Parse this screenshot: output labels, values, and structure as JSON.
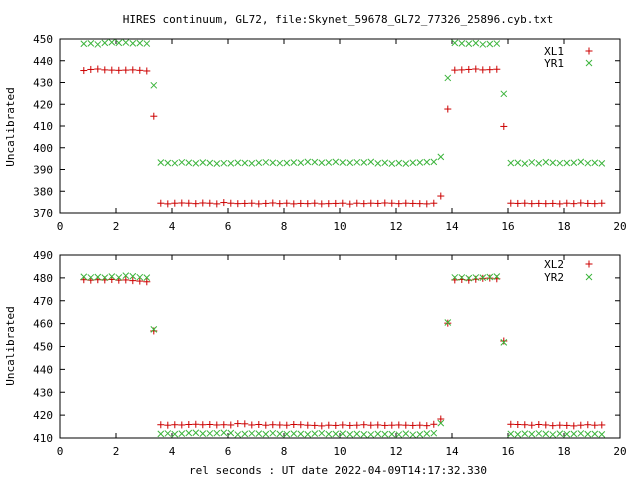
{
  "title": "HIRES continuum, GL72, file:Skynet_59678_GL72_77326_25896.cyb.txt",
  "xlabel": "rel seconds : UT date 2022-04-09T14:17:32.330",
  "colors": {
    "xl": "#cc0000",
    "yr": "#3cb43c",
    "axis": "#000000",
    "background": "#ffffff"
  },
  "chart_data": [
    {
      "type": "scatter",
      "ylabel": "Uncalibrated",
      "xlim": [
        0,
        20
      ],
      "ylim": [
        370,
        450
      ],
      "xticks": [
        "0",
        "2",
        "4",
        "6",
        "8",
        "10",
        "12",
        "14",
        "16",
        "18",
        "20"
      ],
      "yticks": [
        "370",
        "380",
        "390",
        "400",
        "410",
        "420",
        "430",
        "440",
        "450"
      ],
      "legend_position": "top-right",
      "grid": false,
      "x": [
        0.85,
        1.1,
        1.35,
        1.6,
        1.85,
        2.1,
        2.35,
        2.6,
        2.85,
        3.1,
        3.35,
        3.6,
        3.85,
        4.1,
        4.35,
        4.6,
        4.85,
        5.1,
        5.35,
        5.6,
        5.85,
        6.1,
        6.35,
        6.6,
        6.85,
        7.1,
        7.35,
        7.6,
        7.85,
        8.1,
        8.35,
        8.6,
        8.85,
        9.1,
        9.35,
        9.6,
        9.85,
        10.1,
        10.35,
        10.6,
        10.85,
        11.1,
        11.35,
        11.6,
        11.85,
        12.1,
        12.35,
        12.6,
        12.85,
        13.1,
        13.35,
        13.6,
        13.85,
        14.1,
        14.35,
        14.6,
        14.85,
        15.1,
        15.35,
        15.6,
        15.85,
        16.1,
        16.35,
        16.6,
        16.85,
        17.1,
        17.35,
        17.6,
        17.85,
        18.1,
        18.35,
        18.6,
        18.85,
        19.1,
        19.35
      ],
      "series": [
        {
          "name": "XL1",
          "marker": "plus",
          "values": [
            435.5,
            436,
            436.2,
            435.8,
            435.7,
            435.6,
            435.7,
            435.8,
            435.6,
            435.3,
            414.5,
            374.5,
            374.2,
            374.5,
            374.6,
            374.5,
            374.3,
            374.6,
            374.5,
            374.2,
            374.8,
            374.5,
            374.3,
            374.4,
            374.5,
            374.2,
            374.4,
            374.6,
            374.3,
            374.5,
            374.2,
            374.4,
            374.3,
            374.5,
            374.2,
            374.3,
            374.4,
            374.5,
            374.1,
            374.5,
            374.3,
            374.5,
            374.4,
            374.6,
            374.5,
            374.3,
            374.5,
            374.4,
            374.3,
            374.2,
            374.5,
            377.8,
            417.8,
            435.7,
            435.8,
            436,
            436.2,
            435.8,
            435.9,
            436.1,
            409.8,
            374.5,
            374.4,
            374.5,
            374.3,
            374.4,
            374.3,
            374.4,
            374.2,
            374.5,
            374.3,
            374.6,
            374.4,
            374.3,
            374.5
          ]
        },
        {
          "name": "YR1",
          "marker": "cross",
          "values": [
            447.8,
            448,
            447.5,
            448.2,
            448.5,
            448.2,
            448.4,
            448,
            448.1,
            447.9,
            428.7,
            393.2,
            393,
            392.9,
            393.3,
            393.1,
            392.8,
            393.2,
            393,
            392.7,
            392.9,
            392.8,
            393.1,
            393,
            392.8,
            393.1,
            393.3,
            393.1,
            392.9,
            393,
            393.2,
            393.1,
            393.5,
            393.4,
            393.1,
            393.2,
            393.5,
            393.2,
            393.1,
            393.3,
            393.2,
            393.5,
            392.8,
            393.1,
            392.7,
            393,
            392.7,
            393.1,
            393.2,
            393.4,
            393.5,
            395.8,
            432.1,
            448.2,
            448,
            447.8,
            448.1,
            447.5,
            447.7,
            447.9,
            424.8,
            393,
            393.1,
            392.7,
            393.3,
            392.8,
            393.4,
            393.1,
            392.9,
            393,
            393.1,
            393.5,
            392.9,
            393.1,
            392.8
          ]
        }
      ]
    },
    {
      "type": "scatter",
      "ylabel": "Uncalibrated",
      "xlim": [
        0,
        20
      ],
      "ylim": [
        410,
        490
      ],
      "xticks": [
        "0",
        "2",
        "4",
        "6",
        "8",
        "10",
        "12",
        "14",
        "16",
        "18",
        "20"
      ],
      "yticks": [
        "410",
        "420",
        "430",
        "440",
        "450",
        "460",
        "470",
        "480",
        "490"
      ],
      "legend_position": "top-right",
      "grid": false,
      "x": [
        0.85,
        1.1,
        1.35,
        1.6,
        1.85,
        2.1,
        2.35,
        2.6,
        2.85,
        3.1,
        3.35,
        3.6,
        3.85,
        4.1,
        4.35,
        4.6,
        4.85,
        5.1,
        5.35,
        5.6,
        5.85,
        6.1,
        6.35,
        6.6,
        6.85,
        7.1,
        7.35,
        7.6,
        7.85,
        8.1,
        8.35,
        8.6,
        8.85,
        9.1,
        9.35,
        9.6,
        9.85,
        10.1,
        10.35,
        10.6,
        10.85,
        11.1,
        11.35,
        11.6,
        11.85,
        12.1,
        12.35,
        12.6,
        12.85,
        13.1,
        13.35,
        13.6,
        13.85,
        14.1,
        14.35,
        14.6,
        14.85,
        15.1,
        15.35,
        15.6,
        15.85,
        16.1,
        16.35,
        16.6,
        16.85,
        17.1,
        17.35,
        17.6,
        17.85,
        18.1,
        18.35,
        18.6,
        18.85,
        19.1,
        19.35
      ],
      "series": [
        {
          "name": "XL2",
          "marker": "plus",
          "values": [
            479.2,
            479,
            479.2,
            479.1,
            479.3,
            479,
            479.1,
            478.8,
            478.6,
            478.3,
            456.8,
            415.8,
            415.6,
            415.8,
            415.7,
            415.9,
            416,
            415.8,
            415.9,
            415.7,
            415.8,
            415.7,
            416.3,
            416.2,
            415.7,
            415.9,
            415.6,
            415.8,
            415.7,
            415.6,
            415.9,
            415.8,
            415.6,
            415.5,
            415.3,
            415.6,
            415.5,
            415.7,
            415.5,
            415.6,
            415.8,
            415.6,
            415.7,
            415.5,
            415.6,
            415.7,
            415.6,
            415.5,
            415.6,
            415.4,
            416,
            418.3,
            460.2,
            479.1,
            479.3,
            479,
            479.4,
            479.8,
            479.9,
            479.6,
            452.4,
            416,
            415.9,
            415.8,
            415.6,
            415.9,
            415.7,
            415.4,
            415.6,
            415.5,
            415.3,
            415.6,
            415.8,
            415.6,
            415.7
          ]
        },
        {
          "name": "YR2",
          "marker": "cross",
          "values": [
            480.5,
            480.2,
            480.4,
            480.1,
            480.6,
            480.2,
            481,
            480.7,
            480.3,
            480.1,
            457.5,
            411.8,
            412,
            411.7,
            411.9,
            412.2,
            412.3,
            411.9,
            412,
            412.1,
            412.3,
            412.2,
            411.5,
            411.8,
            412,
            411.9,
            411.7,
            412.1,
            411.8,
            411.7,
            411.9,
            411.8,
            411.6,
            411.9,
            412.1,
            411.7,
            411.8,
            411.9,
            411.6,
            411.8,
            411.6,
            411.5,
            411.8,
            411.7,
            411.7,
            411.5,
            411.9,
            411.4,
            411.6,
            411.9,
            412.1,
            416.5,
            460.5,
            480.2,
            480.2,
            479.9,
            480.2,
            480.1,
            480.4,
            480.6,
            451.8,
            411.8,
            411.6,
            411.9,
            411.7,
            412,
            411.8,
            411.5,
            411.9,
            411.7,
            411.8,
            412,
            411.7,
            411.8,
            411.6
          ]
        }
      ]
    }
  ]
}
